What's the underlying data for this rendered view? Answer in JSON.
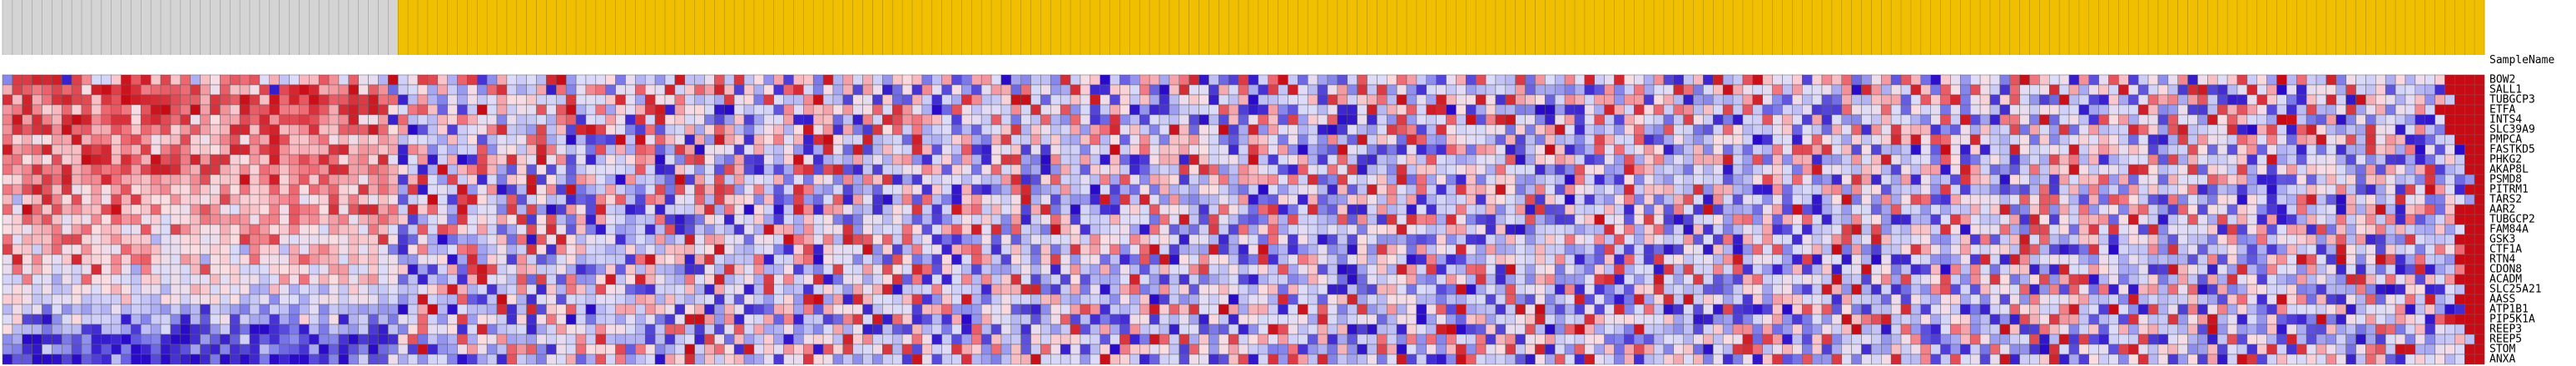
{
  "chart_data": {
    "type": "heatmap",
    "header_label": "SampleName",
    "row_labels": [
      "BOW2",
      "SALL1",
      "TUBGCP3",
      "ETFA",
      "INTS4",
      "SLC39A9",
      "PMPCA",
      "FASTKD5",
      "PHKG2",
      "AKAP8L",
      "PSMD8",
      "PITRM1",
      "TARS2",
      "AAR2",
      "TUBGCP2",
      "FAM84A",
      "GSK3",
      "CTF1A",
      "RTN4",
      "CDON8",
      "ACADM",
      "SLC25A21",
      "AASS",
      "ATP1B1",
      "PIP5K1A",
      "REEP3",
      "REEP5",
      "STOM",
      "ANXA"
    ],
    "n_columns": 251,
    "group_split_column": 40,
    "group_colors": [
      "#d4d4d4",
      "#f0c000"
    ],
    "values": [
      "7ttyxz%sdJIX|nzYrYk@ZShnjoL]EK[[ncJmONA~HQsqY@lt(8^KGKCx~;KJLU4OAH:I{DDOoEuET9_*[Y4{A`I]H:YU[4D`,4_bK!=7ED7wGSY!G0:a]>_ix#D1*t$Hk}F1N=6-HoLKUj`F8+O^,pKEBt2bKBeMyGNxSN@c+&E[&z@Fo}ZNLW+VdZk1:Pa.n\\2\"XO;LSM5o}hYKP$c-NoZ*GS8Oe$PZLXsGU<~BjGDy5QJHQ@UAPLW",
      "]smglrkqSz}s|vgkmnjuaPmZ]Rr$qx}x^ae}Smc1GJU>_G;R8kvH>F_$j6Ndi1NNlRNyHXl`y[*X@T(lwI5S>]+aP$2R(dN,S;,Na^1jJQ;?wW&'XVJg0!ZwLL)^Jl?(sEzLC+Qa7vEt:Q9(JMFM<BEJEa0>>;5@'.c6Gh>KMxj4JZ}^PJNhDaKLP?c!xb@QHyZ3mS6pQG(kMKQwI_?PYI{N.IUD)w{+'BNxL_!M%ORR?tHEW.IKB@'",
      "w[y^ivyrqZuo~zxwvqmm]uqm}tZ|kyn}vmnvt{ik%CaA6O?QFL_TSXHIEuLMJXwM=xRQhHAG?tOU4tKCCd}FB+RN)X1.]G'I?vdDFV}}I0JHZO{Q+VEZ>'CPXS$JD]!DDHLK[)ubHX]jC}:N=z\\QSzR(w`ZT0Id]I``:ba)T^B$;7D?E`yO8.QCL-2^CAZ^_/KnXlx4PV)WnI:*1}CH+%X>,Mk_f?aoF+$%OvXK4&ZMxH#}]UO@MZ9^F",
      "bhyeW[kWoYknhSo|~oh~`vcXzmozgfjvn^wzt{vTJhnZ0R*F~J_GQNoMn~@Ii=WM]u{%`RUJ#!LDJI.dLaZ_SbNSlJvcO@!1oQEMLGdIwNQo9J+F^T#:&(<FGIKn_*$'`7.JKBO&%LzB]VmIzx!T)>V?A56!!;'&P?y^IvUkGjdCZJrFnF04HDN)+*kQLOkK1TIN3N3NRC'OOGRSHJ$=ANJJz[7;P*)Cr]o`R,G'CqA?Pu=O^4PLdI",
      "f|awf\\w~ydnvvUtxqjvPdT`_qkxcqqtpd^dzRQa%kCIC\\Vi]NO6ODFJ@gm(LI`P&vIyUXJP4+;Y*=MK`%$\\Z1D$fHxqbh`ZK*QMFmH3LDlA8kO(1v8C+KGDN,\"C,[/PlZ.s<WOm\"#O&H9t;LGKlE}-fy|JO6%Pa+LpF+^UKG2FsSG'4#IHoO]L*_'K97KE\\JKA6OpG{,=%hhQ5|1JRD(pTa?OO+nLM:{Tm[JH=~}E4/a\"6Q3FLF;$#L",
      "cvnvxd}kn]^ohYkepWbn`X\\xxZvy[^dvZZmnm{kTa!-DW*GLRfwFC;rD[+x|rUL5*j.FI_>Vm_B4GR[AT|Qc'_4)uTlGh?HK1B0ILYuAYPDI_;`jxMZF6K|[1SN~*?y9`LPAG$!)LA;Jtnf+BvSILJRP3W5Yc|K&F>G9Vj?8oJH3.HkSBGDOX0LE1^Ll'cNtX]\\(8/Q>ZDHq3_J;u2MaCGHxkW<ozDGLOw%!]qH$mzUB:D=uQO#JeD5",
      "iV]QTa_{]hfXkqbQX[qWQ\\fpSg_{pZYaiR\\Q[Vb]CLKG>[FT-BLHPkp>H!A*.*~D}Ol[O%_:{`W'\\UfL\\%w~UGIzAFI1zC@FW`>4]sHFaFXA>ZjBT0OdI5ZYbPI5.?^YL4P5I8eB0|GZQ2xm=9ZRMKB0]+C4[@D7Hr^IIn'.>RB9ETQUH!(JL$PlSI=WENWx[{RpkQPxMF@IS3X7EMVL[RF1K'$?sEbQNGkbKfN1b^|OVpBvOb\\%'2GH",
      "{afkyZ[ZxsxZe\\sRgpfWYT^yxbsxc[][]uxZbaY_%e]6I?HHn8PTE[ygNCL3pC^>mi/>ta!OQM)L_GCR:&>xO1{+A[LHw\\-NDn)$RLY*N)QGH6NG~GWjOZX`PTIM&HtcMa8!>5.}MI6*4'N&1'l_3c_M$-DR~Z&2@nMjGQaT$5D\\7S2E2GAgNqq`uL[,S+A=E\"M/~O$W%HDzSGKRK{GWbZOZR+=FHpT1O-Vc0PAD%J3J'>>tY^>h!O-N!",
      "fiT]SpW[~zx\\wl]}ptgycuvWTbYzafqgwjUafVwN#Kc#H^!(q]XvXN|Pd,N%BSGUd_!J6ptS=3`*(N@W}P'?E>`DN@]b8'IW9`@&Sut<5!eGE`E#[1$)S^]%zZHMQD}D)JQ^@)JkD)&C>MZDnJF=ALNFn\"<XSb\\H).N;o>Xf?LB_^_zH<p1[8^]&;:FbJ[zOBJL5nT+4GSE'>I?q\\iA\\'?GLKf.r>]LFGNY(J|<F/MMP?,K7D)(=%2HXF",
      "i_evhfx]dohkr`rzzwd]vu^XeVjeZcgjcxw`alf^UG%?}B\\gs\\=.W.R,J/ENKMJFnH%'ZK9J-q^,$B,>ov,qy-&E*HGPPe[/WO3RkIX5>#9^G/XOXF&0BHDsUvk9Dd[NI.%mMJiNs#AG7vDYYFJRYP@iJJJ&9*6oRT:=ye\\CHB3MAM#E9FNWJ4b{MPHB[WA+RD^`#Qz`H18.GiE\\V|SFOOGyvTCHRt0WPFr>S+QaIYSUJ=2a-`R>]v*@F",
      "UVgatjz]ddxi_]Ze^`[dpVYY}YfzVanXpb_`Pbg\\)]wK;rGW&J4YU{*TC1c\\K?!cDG=1~*aJpEaHMI]4L4VO6e=gZu&<)OGMLCLBCbw'-VmHEMCf=oN8_[U)G>Xh@a]_dLhGw/6sLFMZ>z2j=S6&Z5JXV;8BHB!hH&:)T6OB:KEKGH.<CSq[HkO4:&Rua&J=a&P?D,u]XE\"UM=D(`J[Zn;^1OP1]LKJmdW^;$%.-S0F\\JV1Z^PAF6u7I1:",
      "h`pzo[uPTaS`oUZ`eVUbYQgTiWYlXkTjbkVSu_j`=t#KNG|:Oc\"+A}Rd*}3?F`G>5Jq3oNq^uq:NfE.Hwg?:I+;A0KK[R(XI#]*%5?jx6=AbDJ!J*>2S4]@F>UTG<3G!K;GOQB%\\/DzWfLCkG'Dt[_V|T4AgK-dROCL?xF[Y]GAv8_]A;$#c2FJF`e9dNU.BGDP9tI*CB7+2,Ak)G\\<f<G4aHYEHUh&/C=)>E\"?HG[SMfE-&=Q(rL}bL&",
      "[@W\\xfUpS_Qq]tYTTcWXRYr^WVYadiNSWqXgYOZR.GM~J*ryUGAn-HTBF&0,fVmC+ib(OKlAsYWU7[,3s:1Jm%aM(\"Af.kC5#XbQNGR{@M,B9:&{/uDyL9b;6@BOFb#2/VO%]0:;X]RCcF`'?IDI[(XTJCq)YL!H)B:Sg5W3C]oJ#dI-NJ8O0KF#@T}4R9d>Spj,(_QRPOBMmRnmPA-]2ohTF.(i6KA4UQ\"UK'F@kzD/!]IU?IwMQ35WK<",
      "kN~kYp^d[Zq}YUYkTSPcocQK\\YTfRngfTvQoxx`iGyXkN?|DLL6tAr:!*bS,yGD$(N$GHF\\w>iQ!UH\"Ezd%c`O>C'BUMuF(H{ajF\\KW+^x3F!I@(&MWJnPSOC(GjSG2ku%3Jw6/Y&%HbAG#K'GHgHE^7Hb#u,-YGFJ[G&T3W.gJ)}*?=@2P`,}-#>H;KJ0=nIH:J>GD]JXz17Ym8_Gi:LS6_kG:*lT,SN0XQ7)#Gi@HL\"_?_}A$Z`n2Y",
      "RWmcoZMVPdTlbfPWJSU[hdaebQdfSn`dY`fO]bkaX*=JQ4tLVM_Tv)SpB3_$`MI<ECi*#+4VM%NIX=)I?ZKS5,5ONCQB/A*8FSHXG7b%GPkY*JFH]LLK3iL{E-qMC1-5a@pGHB=o/dC)uLvfh>wP7+(AKFo>3)*OY}LP.SsQ*\"+HJT;fj9Y0]RkJ%E>eLT:%&A@*KtbLEDN`(yT*SH_\\c0S{OF#DLnM?pH^N&a#)>]MEhFVdFf&h.<H`",
      "TVO\\^gP`jT[ZLOnQKrdZSR]UbjaUXeSTJaZYLh[K/EnIqjVL`H0=NqSwP.Z5#I;?H&Cp%-D9GA(N@|\\_?cIPQv8RFKIiU-J_nXzMw4mGA4}\\U(DHLQ=#iP/<2GtF+j=Vl=IMIDMEM5RTWzQLBF^`GR'Z$\"2FHIF;CAwRg>Xj2G\"[(H5BNG_'-K&DGLs|Cq9GAYYGvR\"SNOj?4qqJU2[tKuLR,x7NLJLX&s+Rb-K`_'q3[>UXgD\\G@>Y<K",
      "iM^[ZjqrVQYcYXXAMPUWNPZTtffrQLPOQTP[XXuS)1Q?!2>;EN[2j\"nRyUBOKP'>JBa=GzMb_MN2PQI}i_NfAzqnTlGnEP'2(9<R/Q/BNGLJWGdTRKeZLUJ$NMA&?RJ2jQ)RE#,E,TJ99>1,0W8E)'H?\\M:FYMhRLdDoK>ZOEIb.K*i$]LbKJ'PEMcqDNz[HGMS:8GZ)h.F[{JkC:FYYE(DUP[=.LDC4Uc7:iEQMW\\:\\nBb&*>5tJEDG",
      "sWYG^kRRcUQOk^bZNOSTQWUJ>eWWD^M_f[QZMYM5&SfAAKhm=DQ?GvU'eR]IG?CVAMAZ[]LT|PC@IM6'Wq%XNMM}8W*AgKP%]gnG'H[E1Z3DuX`Ph8Ok}H*>A<{*=%P}9A'8AN7>\"V9t]S3bDSLxO<a=@JD\\FG8=F/rF+H)1#+RN#ZA\"9kJo7KN]B~3a6*EEUu_Q@P`LHRWDvmA,#(3uL!IEEd7vDM/EGSC,@)9\\EK(>{TFP,XGL5JgSk",
      "OyUeSMXxXVTeWjmVQLb[>SWKUjRQP_mb]\\J^W[NP;:ONU\"=x;WO*cG.6JU>EHFE)j|XT]$`vHAEDj$IHaj!SLL6H<,pU3>*U#Jm`E+UH5YsP:OR2D&3o/|\"TJdRTD*4v'BNh_NE5NX@YTH\"'g<&,@=M[VLHZIdH%9/Z&lH)tNTEKOAc{DPPJ<%s#OK#P@!O&&LI96=P)xI%zdCLQMN?8PK?OG?C>@-Ff-V8.:XcL|nK)~R7R}o'<jFD:",
      "OjP^TINHOwRcO>fMLOJ[qSTWIIKVTWSHNaaHJXKRX#<*H_0s|pGM`[FGQ?'.:X/YB]B@6'(O@uZLc@AR*B5JsKIaOpSJxk-XLB+E<;EQ@O%NbE=^9PB.E\\KLdsHDRCLVEo>OX-D!$<LZ@zcHt'G@kmK'}I<OT4NA5WDs?KJ#u@rHHeHn(H;%9\\*AY$JN}NT4D&,[!fCfJ3HXZ$;%yKKaUM??N(*|\\QH$M;wA3eKM9bCQ&K'G3H#-y$<Eg",
      "IGgKL>PGkSTMJEWXJPINM[MWOPEKcRiP\\T^O]bLR1D%D;G'^{LNCn1sH.h9:U{ETy]OD?hKVz@HR?tOeGRw#3OO>IUv/h&J%JeBeEXvJ+>H+T-A>?KyJ;)C(G3=DJ,$@GG6=]SH2!1MENS_:5IbSAuA&;H7]e8:;Lsw$J;H{J<MtH.6+]jGJPKQNE}BF+Se<rGNTqG8dQuT3@Uq9_sv\"AP4CIW4A`E._?vMT*J@9aBQB8xw]KiM\\,[Jb",
      "MUPGQCETSKT\\SGPOAPP]XJULS?@[N@JG>OFXNFFLDDMVa{]@I(BHdL&YAhZCpSO1,(HGJ[@%_LP$BuJAD(HVH:`O]y\"EFIfNHHD&_\\]xy3)F_4O\"B_k4?cFW.RR[PH@T[2\\LEK$$C1+\\]K3KH,3}\">K?oHMRE%f&M(4D.XVtDIAD.-4FVS=NR6*F{]9}?'H'2D8ep,I-[MSJl$9f,mP2i$Q#\\bAjOk\"*_5>WSIIV58)A@=g6#!&VT%'KD",
      "WWREGMMSDGHG[IEAURHPQVITAFN8LK?LQQGOQNAI8D|HBAm/)D~T@'KP-JHDMLHB`\\@[G?GK(I.PF;JV;y~<`%x\\KKF[t(9YJ{A2FQHIB[`B<FHD8R@Y!*F8?MGP!DMO@x.KG0S[y=IBSRSAA5C>IJ+Hn7-Q6DLz-L3#3z=VwE|GXP=H)W9`[YJMG'_GFB1P+RE=RV>L7P,Q9gQLOY`CCH7{AHBFGZD=,YjN'N}Ve2\\*&QAm1RKiFz?G",
      "BQFO1K9C<EAOAGE@:G9B'GC<5F4GD6BM7FB?;?:;!G_~B\"KCC?w'Cx,XTmG!BH__GbYP'T^$;\\O'+2^Z=g.^RSR&DNKM*[^k:8;SLU/*%8SL`qc'FAFa{Wl[uLL~`>\\^G%J|JmL5Et:Cb@S\"Qm,|=BD(F|Q~<,@*P+Lx6JjE\"(J,N#r)'#+Y!WpWn.T5)DCQwB*LRF$4%HLlUZHHf{DK*~K8$r@O*g&Pf>VB4)eIKKGS^#ALLNd\"DY<\"'",
      "KW+)\"8JUGHHE$A6GH7$A.KQ*G>=(>4WH<S%AG/B4NIkH:Ps<TPG'V'RhR!H3EG=M@N4)M|}b:d%MI_0f%EF*1ftJ{$kX&-B(^!:^NJBE-AQm+C'4*'QS)IAN=$UE%RSJLKMR>xJ?HOP1ARQ!<P;0Y^<IGRZyI<IFv]OQUMMKY=F#%8<*6IQ`9)4K:Q}ZhpzDHAS>ITW;C'8$q]Rtb`E.BG,vQDFu;Sb|AN%J:W0*&5~4$RKaKBaWM#lz",
      "TCBA3>DC)'CD<)D=J(!'):F)3!!',4$B4E?:F)$D6TkNMT'Jy5DGJ%=HaSPEdRRJA+EmmA)F+NnI_>AQ8C7J_?P$&C/+\\AH4K$mB+NA'OE;Fx-B`>,cEHC$JL,4/I%9L|pQDJ^E\\\"*\"BD%VLBz~!+/X+OMoB!7l}]?JD5{FE?8D,HX<dd5`2;W4<RG[~@E#Hk;-%Ki_8DG}Z)*j[P6HY/K]<W^FGA\\,~:Q;?5Z#P?-,[=D3=pk4I[(NHE",
      "8?!!&&4-9$$&!.46&!!';/%/H%/'38-#67(!)&$'Vo3E:Ap?TPc=@<OHNHdGwB?AA*C(EK%sQ2[<EW=#:QVRDyWeHHCQiR$F,<h+ZDF-WHWYVJH.Ju%4|lGu?Y8SrHT`MaHJ.^'>.HEjG7g9j6gJGh)\\d(PUaGKGRT36*7.ALJAP\\DTPz1sa#D,Yt7EIMG:BRe.*9?[lR<<GJq#B|)s,%HJGr)&LSA:$Ep,TQA,yA,=8H7\"=*KQ5P7EF\\D",
      "85'#G;9,7%.\"5!&1#'-=)%6'+&C71/(?!/$-6!16N*}&9<QaP8Dlbm7'PJjTVSq/hS6@I~G^jT'{LXMbWf#nVsHJQuBt,YHLu^W8j<Z.GkR%N*CV!gXXNTE*lT;S`QGD56i(:A3\\9#Cr^!K9R:[w8jNTtFVy%J9mP=Z2_q_H6RY2\"LBuwjCO\\Q5X*?OM'?<ZGPfH*:'G3kN89(!vJ,TKN-rzNDV\\O8<[+LF(XvH(uM_PD2QhoF}|@?ORK",
      "\"..!!\"+!/*&C0!!,!($!&4!'!&4!&!!,'6!6G,-P?I9IJ6\"*=F&oF?5OJ^0?oIg:DJ\"`Vw>ZFW\\:>N)OOuUQ7E8F8GI)|O,FHvB<5DZ]}IJHL:K}ZVF%0HJ,QN'-Zq#Iv:t`Dx6E=CP4K{+G'#7}mIEHB.#R>nJ&{NH6]'BFW^K\\5O'5P#Yu-3o9:tL5MIRxDCe+FpKO+O|%GIXy$>*TGL7TvBR);U*`#H}u+H[MJVJdP%Dk[/&LWJSBJ"
    ]
  }
}
